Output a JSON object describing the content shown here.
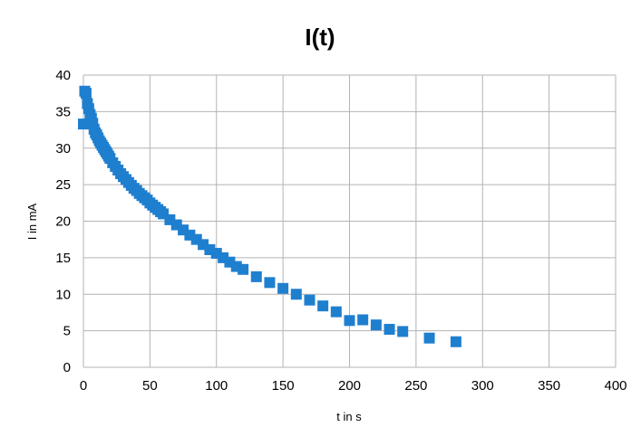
{
  "chart_data": {
    "type": "scatter",
    "title": "I(t)",
    "xlabel": "t in s",
    "ylabel": "I in mA",
    "xlim": [
      0,
      400
    ],
    "ylim": [
      0,
      40
    ],
    "xticks": [
      "0",
      "50",
      "100",
      "150",
      "200",
      "250",
      "300",
      "350",
      "400"
    ],
    "yticks": [
      "0",
      "5",
      "10",
      "15",
      "20",
      "25",
      "30",
      "35",
      "40"
    ],
    "grid": true,
    "legend": "none",
    "marker": "square",
    "color": "#1f7fcf",
    "gridColor": "#b3b3b3",
    "points": [
      [
        0,
        33.3
      ],
      [
        1,
        37.8
      ],
      [
        2,
        37.5
      ],
      [
        3,
        36.1
      ],
      [
        4,
        35.4
      ],
      [
        5,
        34.6
      ],
      [
        6,
        34.1
      ],
      [
        7,
        33.4
      ],
      [
        8,
        32.6
      ],
      [
        9,
        32.1
      ],
      [
        10,
        31.8
      ],
      [
        11,
        31.4
      ],
      [
        12,
        31.0
      ],
      [
        13,
        30.7
      ],
      [
        14,
        30.4
      ],
      [
        15,
        30.1
      ],
      [
        16,
        29.8
      ],
      [
        17,
        29.5
      ],
      [
        18,
        29.2
      ],
      [
        19,
        28.9
      ],
      [
        20,
        28.6
      ],
      [
        22,
        28.0
      ],
      [
        24,
        27.5
      ],
      [
        26,
        27.0
      ],
      [
        28,
        26.5
      ],
      [
        30,
        26.1
      ],
      [
        32,
        25.7
      ],
      [
        34,
        25.3
      ],
      [
        36,
        24.9
      ],
      [
        38,
        24.5
      ],
      [
        40,
        24.2
      ],
      [
        42,
        23.8
      ],
      [
        44,
        23.5
      ],
      [
        46,
        23.2
      ],
      [
        48,
        22.9
      ],
      [
        50,
        22.5
      ],
      [
        52,
        22.2
      ],
      [
        54,
        21.9
      ],
      [
        56,
        21.6
      ],
      [
        58,
        21.3
      ],
      [
        60,
        21.0
      ],
      [
        65,
        20.2
      ],
      [
        70,
        19.5
      ],
      [
        75,
        18.8
      ],
      [
        80,
        18.1
      ],
      [
        85,
        17.5
      ],
      [
        90,
        16.8
      ],
      [
        95,
        16.1
      ],
      [
        100,
        15.6
      ],
      [
        105,
        15.0
      ],
      [
        110,
        14.4
      ],
      [
        115,
        13.8
      ],
      [
        120,
        13.4
      ],
      [
        130,
        12.4
      ],
      [
        140,
        11.6
      ],
      [
        150,
        10.8
      ],
      [
        160,
        10.0
      ],
      [
        170,
        9.2
      ],
      [
        180,
        8.4
      ],
      [
        190,
        7.6
      ],
      [
        200,
        6.4
      ],
      [
        210,
        6.5
      ],
      [
        220,
        5.8
      ],
      [
        230,
        5.2
      ],
      [
        240,
        4.9
      ],
      [
        260,
        4.0
      ],
      [
        280,
        3.5
      ]
    ]
  }
}
